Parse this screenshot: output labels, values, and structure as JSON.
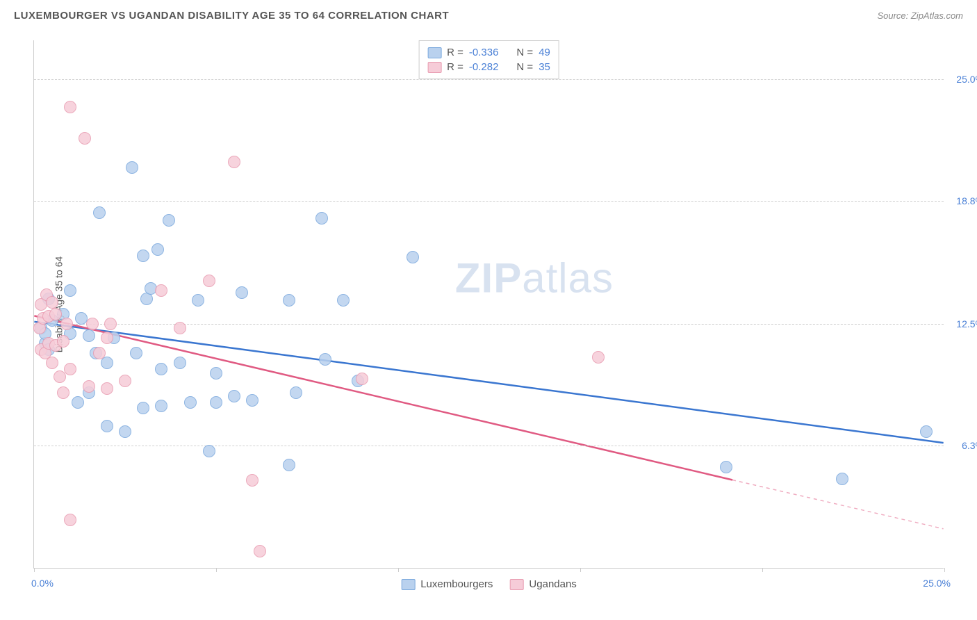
{
  "header": {
    "title": "LUXEMBOURGER VS UGANDAN DISABILITY AGE 35 TO 64 CORRELATION CHART",
    "source": "Source: ZipAtlas.com"
  },
  "chart": {
    "type": "scatter",
    "y_axis_label": "Disability Age 35 to 64",
    "background_color": "#ffffff",
    "grid_color": "#d0d0d0",
    "axis_color": "#cccccc",
    "xlim": [
      0,
      25
    ],
    "ylim": [
      0,
      27
    ],
    "x_range_labels": {
      "min": "0.0%",
      "max": "25.0%"
    },
    "y_ticks": [
      {
        "value": 6.3,
        "label": "6.3%"
      },
      {
        "value": 12.5,
        "label": "12.5%"
      },
      {
        "value": 18.8,
        "label": "18.8%"
      },
      {
        "value": 25.0,
        "label": "25.0%"
      }
    ],
    "x_tick_positions": [
      0,
      5,
      10,
      15,
      20,
      25
    ],
    "watermark": {
      "bold": "ZIP",
      "rest": "atlas",
      "color": "#d8e2f0",
      "fontsize": 60
    },
    "series": [
      {
        "name": "Luxembourgers",
        "fill_color": "#b9d1ee",
        "stroke_color": "#7aa8dd",
        "trend_color": "#3a76d0",
        "marker_radius": 9,
        "R": "-0.336",
        "N": "49",
        "trend": {
          "x1": 0,
          "y1": 12.6,
          "x2": 25,
          "y2": 6.4
        },
        "points": [
          {
            "x": 0.2,
            "y": 12.3
          },
          {
            "x": 0.3,
            "y": 11.5
          },
          {
            "x": 0.3,
            "y": 12.0
          },
          {
            "x": 0.4,
            "y": 13.8
          },
          {
            "x": 0.4,
            "y": 11.2
          },
          {
            "x": 0.5,
            "y": 12.7
          },
          {
            "x": 0.8,
            "y": 13.0
          },
          {
            "x": 1.0,
            "y": 12.0
          },
          {
            "x": 1.0,
            "y": 14.2
          },
          {
            "x": 1.2,
            "y": 8.5
          },
          {
            "x": 1.5,
            "y": 11.9
          },
          {
            "x": 1.5,
            "y": 9.0
          },
          {
            "x": 1.7,
            "y": 11.0
          },
          {
            "x": 1.8,
            "y": 18.2
          },
          {
            "x": 2.0,
            "y": 10.5
          },
          {
            "x": 2.0,
            "y": 7.3
          },
          {
            "x": 2.2,
            "y": 11.8
          },
          {
            "x": 2.5,
            "y": 7.0
          },
          {
            "x": 2.7,
            "y": 20.5
          },
          {
            "x": 2.8,
            "y": 11.0
          },
          {
            "x": 3.0,
            "y": 16.0
          },
          {
            "x": 3.0,
            "y": 8.2
          },
          {
            "x": 3.1,
            "y": 13.8
          },
          {
            "x": 3.2,
            "y": 14.3
          },
          {
            "x": 3.4,
            "y": 16.3
          },
          {
            "x": 3.5,
            "y": 10.2
          },
          {
            "x": 3.5,
            "y": 8.3
          },
          {
            "x": 3.7,
            "y": 17.8
          },
          {
            "x": 4.0,
            "y": 10.5
          },
          {
            "x": 4.3,
            "y": 8.5
          },
          {
            "x": 4.5,
            "y": 13.7
          },
          {
            "x": 4.8,
            "y": 6.0
          },
          {
            "x": 5.0,
            "y": 8.5
          },
          {
            "x": 5.0,
            "y": 10.0
          },
          {
            "x": 5.5,
            "y": 8.8
          },
          {
            "x": 5.7,
            "y": 14.1
          },
          {
            "x": 6.0,
            "y": 8.6
          },
          {
            "x": 7.0,
            "y": 13.7
          },
          {
            "x": 7.0,
            "y": 5.3
          },
          {
            "x": 7.2,
            "y": 9.0
          },
          {
            "x": 7.9,
            "y": 17.9
          },
          {
            "x": 8.0,
            "y": 10.7
          },
          {
            "x": 8.5,
            "y": 13.7
          },
          {
            "x": 8.9,
            "y": 9.6
          },
          {
            "x": 10.4,
            "y": 15.9
          },
          {
            "x": 19.0,
            "y": 5.2
          },
          {
            "x": 22.2,
            "y": 4.6
          },
          {
            "x": 24.5,
            "y": 7.0
          },
          {
            "x": 1.3,
            "y": 12.8
          }
        ]
      },
      {
        "name": "Ugandans",
        "fill_color": "#f6ccd8",
        "stroke_color": "#e89bb0",
        "trend_color": "#e05a82",
        "marker_radius": 9,
        "R": "-0.282",
        "N": "35",
        "trend": {
          "x1": 0,
          "y1": 12.9,
          "x2_solid": 19.2,
          "y2_solid": 4.5,
          "x2": 25,
          "y2": 2.0
        },
        "points": [
          {
            "x": 0.15,
            "y": 12.3
          },
          {
            "x": 0.2,
            "y": 11.2
          },
          {
            "x": 0.2,
            "y": 13.5
          },
          {
            "x": 0.25,
            "y": 12.8
          },
          {
            "x": 0.3,
            "y": 11.0
          },
          {
            "x": 0.35,
            "y": 14.0
          },
          {
            "x": 0.4,
            "y": 11.5
          },
          {
            "x": 0.4,
            "y": 12.9
          },
          {
            "x": 0.5,
            "y": 13.6
          },
          {
            "x": 0.5,
            "y": 10.5
          },
          {
            "x": 0.6,
            "y": 13.0
          },
          {
            "x": 0.6,
            "y": 11.4
          },
          {
            "x": 0.7,
            "y": 9.8
          },
          {
            "x": 0.8,
            "y": 11.6
          },
          {
            "x": 0.8,
            "y": 9.0
          },
          {
            "x": 0.9,
            "y": 12.5
          },
          {
            "x": 1.0,
            "y": 23.6
          },
          {
            "x": 1.0,
            "y": 10.2
          },
          {
            "x": 1.0,
            "y": 2.5
          },
          {
            "x": 1.4,
            "y": 22.0
          },
          {
            "x": 1.5,
            "y": 9.3
          },
          {
            "x": 1.6,
            "y": 12.5
          },
          {
            "x": 1.8,
            "y": 11.0
          },
          {
            "x": 2.0,
            "y": 11.8
          },
          {
            "x": 2.0,
            "y": 9.2
          },
          {
            "x": 2.1,
            "y": 12.5
          },
          {
            "x": 2.5,
            "y": 9.6
          },
          {
            "x": 3.5,
            "y": 14.2
          },
          {
            "x": 4.0,
            "y": 12.3
          },
          {
            "x": 4.8,
            "y": 14.7
          },
          {
            "x": 5.5,
            "y": 20.8
          },
          {
            "x": 6.0,
            "y": 4.5
          },
          {
            "x": 6.2,
            "y": 0.9
          },
          {
            "x": 9.0,
            "y": 9.7
          },
          {
            "x": 15.5,
            "y": 10.8
          }
        ]
      }
    ],
    "legend_top": {
      "R_label": "R =",
      "N_label": "N ="
    },
    "legend_bottom_labels": [
      "Luxembourgers",
      "Ugandans"
    ]
  }
}
